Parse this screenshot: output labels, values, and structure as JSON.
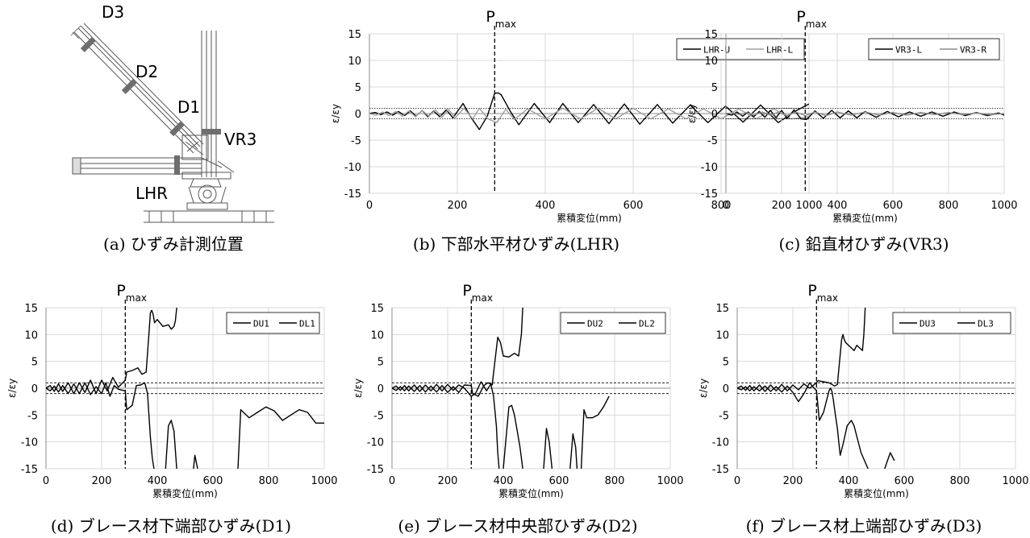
{
  "figure": {
    "diagram": {
      "caption": "(a) ひずみ計測位置",
      "labels": {
        "d3": "D3",
        "d2": "D2",
        "d1": "D1",
        "vr3": "VR3",
        "lhr": "LHR"
      }
    }
  },
  "chart_data": [
    {
      "id": "b",
      "type": "line",
      "caption": "(b) 下部水平材ひずみ(LHR)",
      "xlabel": "累積変位(mm)",
      "ylabel": "ε/εy",
      "xlim": [
        0,
        1000
      ],
      "ylim": [
        -15,
        15
      ],
      "xticks": [
        0,
        200,
        400,
        600,
        800,
        1000
      ],
      "yticks": [
        15,
        10,
        5,
        0,
        -5,
        -10,
        -15
      ],
      "pmax_x": 285,
      "pmax_label": "P",
      "pmax_sub": "max",
      "ref_lines": [
        1,
        -1
      ],
      "legend_position": "top-right",
      "grid": true,
      "series": [
        {
          "name": "LHR-U",
          "color": "#000000",
          "x": [
            0,
            13,
            26,
            40,
            53,
            66,
            80,
            93,
            106,
            120,
            133,
            146,
            160,
            175,
            190,
            213,
            230,
            250,
            268,
            285,
            293,
            300,
            320,
            340,
            375,
            410,
            440,
            475,
            510,
            545,
            580,
            615,
            655,
            690,
            730,
            770,
            810,
            850,
            890,
            930,
            970,
            1000
          ],
          "y": [
            0,
            0.2,
            -0.2,
            0.3,
            -0.3,
            0.4,
            -0.4,
            0.5,
            -0.5,
            0.6,
            -0.6,
            0.5,
            -0.6,
            0.7,
            -0.8,
            1.9,
            -0.6,
            -3.0,
            -0.5,
            3.8,
            3.9,
            3.5,
            0.5,
            -2.1,
            1.9,
            -1.7,
            1.9,
            -1.7,
            1.7,
            -1.9,
            1.8,
            -2.0,
            1.7,
            -1.8,
            1.6,
            -1.7,
            1.4,
            -1.6,
            1.6,
            -1.7,
            0.5,
            1.8
          ]
        },
        {
          "name": "LHR-L",
          "color": "#a0a0a0",
          "x": [
            0,
            15,
            30,
            45,
            60,
            75,
            90,
            105,
            120,
            135,
            150,
            165,
            180,
            195,
            215,
            235,
            250,
            270,
            290,
            310,
            330,
            360,
            400,
            440,
            480,
            520,
            560,
            600,
            640,
            680,
            720,
            760,
            800,
            840,
            880,
            920,
            960,
            1000
          ],
          "y": [
            0,
            -0.3,
            0.3,
            -0.4,
            0.4,
            -0.5,
            0.5,
            -0.6,
            0.6,
            -0.5,
            0.7,
            -0.7,
            0.8,
            -0.8,
            1.0,
            -1.0,
            1.0,
            -1.0,
            -1.7,
            0.8,
            -1.1,
            0.9,
            -1.0,
            1.0,
            -1.0,
            1.0,
            -1.0,
            1.0,
            -1.0,
            0.9,
            -1.0,
            0.9,
            -1.0,
            0.9,
            -1.0,
            0.9,
            -1.0,
            -0.6
          ]
        }
      ]
    },
    {
      "id": "c",
      "type": "line",
      "caption": "(c) 鉛直材ひずみ(VR3)",
      "xlabel": "累積変位(mm)",
      "ylabel": "ε/εy",
      "xlim": [
        0,
        1000
      ],
      "ylim": [
        -15,
        15
      ],
      "xticks": [
        0,
        200,
        400,
        600,
        800,
        1000
      ],
      "yticks": [
        15,
        10,
        5,
        0,
        -5,
        -10,
        -15
      ],
      "pmax_x": 285,
      "pmax_label": "P",
      "pmax_sub": "max",
      "ref_lines": [
        1,
        -1
      ],
      "legend_position": "top-right",
      "grid": true,
      "series": [
        {
          "name": "VR3-L",
          "color": "#000000",
          "x": [
            0,
            20,
            40,
            60,
            80,
            100,
            120,
            140,
            160,
            180,
            200,
            220,
            245,
            270,
            290,
            320,
            350,
            380,
            410,
            440,
            470,
            500,
            540,
            580,
            620,
            660,
            700,
            740,
            780,
            820,
            860,
            900,
            940,
            980,
            1000
          ],
          "y": [
            0,
            -0.3,
            0.3,
            -0.5,
            0.3,
            -0.6,
            0.4,
            -0.7,
            0.6,
            -0.8,
            0.6,
            -0.9,
            0.7,
            -1.0,
            -1.1,
            0.5,
            -0.9,
            0.6,
            -0.8,
            0.5,
            -0.8,
            0.4,
            -0.7,
            0.4,
            -0.6,
            0.3,
            -0.5,
            0.3,
            -0.5,
            0.3,
            -0.4,
            0.2,
            -0.4,
            0.1,
            -0.3
          ]
        },
        {
          "name": "VR3-R",
          "color": "#8c8c8c",
          "x": [
            0,
            25,
            50,
            75,
            100,
            130,
            160,
            190,
            220,
            250,
            285,
            320,
            360,
            400,
            450,
            500,
            550,
            600,
            650,
            700,
            750,
            800,
            850,
            900,
            950,
            1000
          ],
          "y": [
            0,
            0.1,
            -0.2,
            0.2,
            -0.3,
            0.3,
            -0.3,
            0.3,
            -0.4,
            0.3,
            -0.4,
            0.3,
            -0.4,
            0.3,
            -0.3,
            0.3,
            -0.3,
            0.2,
            -0.3,
            0.2,
            -0.2,
            0.2,
            -0.2,
            0.1,
            -0.2,
            0.0
          ]
        }
      ]
    },
    {
      "id": "d",
      "type": "line",
      "caption": "(d) ブレース材下端部ひずみ(D1)",
      "xlabel": "累積変位(mm)",
      "ylabel": "ε/εy",
      "xlim": [
        0,
        1000
      ],
      "ylim": [
        -15,
        15
      ],
      "xticks": [
        0,
        200,
        400,
        600,
        800,
        1000
      ],
      "yticks": [
        15,
        10,
        5,
        0,
        -5,
        -10,
        -15
      ],
      "pmax_x": 285,
      "pmax_label": "P",
      "pmax_sub": "max",
      "ref_lines": [
        1,
        -1
      ],
      "legend_position": "top-right",
      "grid": true,
      "series": [
        {
          "name": "DU1",
          "color": "#000000",
          "x": [
            0,
            15,
            30,
            45,
            60,
            80,
            100,
            120,
            140,
            160,
            180,
            200,
            220,
            240,
            260,
            285,
            290,
            310,
            330,
            345,
            360,
            370,
            375,
            380,
            385,
            390,
            400,
            420,
            440,
            450,
            460,
            465,
            470
          ],
          "y": [
            0,
            0.5,
            -0.6,
            0.8,
            -0.6,
            1.0,
            -1.0,
            1.0,
            -0.8,
            1.5,
            -1.0,
            1.5,
            -0.5,
            2.0,
            0.2,
            1.5,
            3.0,
            3.3,
            3.8,
            2.6,
            3.0,
            10.0,
            14.0,
            14.5,
            13.8,
            12.2,
            12.8,
            11.5,
            11.8,
            11.0,
            11.5,
            12.5,
            15.0
          ]
        },
        {
          "name": "DL1",
          "color": "#000000",
          "x": [
            0,
            15,
            30,
            45,
            60,
            80,
            100,
            120,
            140,
            160,
            180,
            200,
            215,
            230,
            245,
            260,
            285,
            290,
            310,
            325,
            340,
            355,
            365,
            375,
            382,
            388,
            null,
            430,
            440,
            450,
            460,
            470,
            null,
            530,
            535,
            545,
            null,
            690,
            700,
            730,
            760,
            790,
            820,
            850,
            880,
            910,
            940,
            970,
            1000
          ],
          "y": [
            0,
            -0.5,
            0.4,
            -0.7,
            0.5,
            -1.0,
            0.8,
            -1.0,
            1.0,
            -1.2,
            0.3,
            -1.0,
            1.0,
            -1.5,
            0.5,
            -0.2,
            -0.5,
            -4.0,
            -3.2,
            0.5,
            0.6,
            1.0,
            -1.0,
            -9.0,
            -13.0,
            -15.0,
            null,
            -15.0,
            -7.0,
            -6.0,
            -8.0,
            -15.0,
            null,
            -15.0,
            -12.5,
            -15.0,
            null,
            -15.0,
            -4.0,
            -5.5,
            -4.5,
            -3.5,
            -4.2,
            -6.0,
            -5.0,
            -4.0,
            -4.5,
            -6.5,
            -6.5
          ]
        }
      ]
    },
    {
      "id": "e",
      "type": "line",
      "caption": "(e) ブレース材中央部ひずみ(D2)",
      "xlabel": "累積変位(mm)",
      "ylabel": "ε/εy",
      "xlim": [
        0,
        1000
      ],
      "ylim": [
        -15,
        15
      ],
      "xticks": [
        0,
        200,
        400,
        600,
        800,
        1000
      ],
      "yticks": [
        15,
        10,
        5,
        0,
        -5,
        -10,
        -15
      ],
      "pmax_x": 285,
      "pmax_label": "P",
      "pmax_sub": "max",
      "ref_lines": [
        1,
        -1
      ],
      "legend_position": "top-right",
      "grid": true,
      "series": [
        {
          "name": "DU2",
          "color": "#000000",
          "x": [
            0,
            15,
            30,
            45,
            60,
            80,
            100,
            120,
            140,
            160,
            180,
            200,
            220,
            240,
            260,
            285,
            300,
            320,
            340,
            355,
            360,
            380,
            390,
            400,
            420,
            440,
            455,
            465,
            470
          ],
          "y": [
            0,
            0.4,
            -0.4,
            0.5,
            -0.5,
            0.6,
            -0.6,
            0.6,
            -0.5,
            0.7,
            -0.5,
            0.7,
            -0.4,
            0.6,
            0.0,
            -1.5,
            -1.0,
            1.2,
            -0.5,
            0.8,
            0.6,
            9.5,
            8.5,
            6.0,
            5.8,
            6.5,
            6.0,
            10.0,
            15.0
          ]
        },
        {
          "name": "DL2",
          "color": "#000000",
          "x": [
            0,
            15,
            30,
            45,
            60,
            80,
            100,
            120,
            140,
            160,
            180,
            200,
            220,
            240,
            260,
            285,
            290,
            310,
            330,
            345,
            355,
            365,
            375,
            380,
            385,
            null,
            400,
            420,
            430,
            440,
            450,
            460,
            470,
            null,
            545,
            555,
            565,
            575,
            null,
            640,
            650,
            660,
            665,
            null,
            680,
            690,
            700,
            720,
            740,
            760,
            780
          ],
          "y": [
            0,
            -0.4,
            0.3,
            -0.5,
            0.4,
            -0.6,
            0.5,
            -0.7,
            0.4,
            -0.7,
            0.5,
            -0.8,
            0.3,
            -0.8,
            0.6,
            0.5,
            -1.0,
            -1.5,
            0.5,
            1.0,
            0.8,
            -1.5,
            -7.0,
            -12.0,
            -15.0,
            null,
            -15.0,
            -3.5,
            -3.2,
            -5.0,
            -8.0,
            -11.0,
            -15.0,
            null,
            -15.0,
            -7.5,
            -10.0,
            -15.0,
            null,
            -15.0,
            -8.5,
            -11.0,
            -15.0,
            null,
            -15.0,
            -4.0,
            -5.5,
            -5.5,
            -5.0,
            -3.5,
            -1.5
          ]
        }
      ]
    },
    {
      "id": "f",
      "type": "line",
      "caption": "(f) ブレース材上端部ひずみ(D3)",
      "xlabel": "累積変位(mm)",
      "ylabel": "ε/εy",
      "xlim": [
        0,
        1000
      ],
      "ylim": [
        -15,
        15
      ],
      "xticks": [
        0,
        200,
        400,
        600,
        800,
        1000
      ],
      "yticks": [
        15,
        10,
        5,
        0,
        -5,
        -10,
        -15
      ],
      "pmax_x": 285,
      "pmax_label": "P",
      "pmax_sub": "max",
      "ref_lines": [
        1,
        -1
      ],
      "legend_position": "top-right",
      "grid": true,
      "series": [
        {
          "name": "DU3",
          "color": "#000000",
          "x": [
            0,
            15,
            30,
            45,
            60,
            80,
            100,
            120,
            140,
            160,
            180,
            200,
            220,
            240,
            260,
            285,
            290,
            310,
            330,
            350,
            360,
            375,
            380,
            385,
            390,
            400,
            420,
            430,
            440,
            450,
            455,
            460
          ],
          "y": [
            0,
            0.4,
            -0.4,
            0.5,
            -0.5,
            0.6,
            -0.6,
            0.6,
            -0.5,
            0.7,
            -0.5,
            0.6,
            -0.3,
            0.8,
            0.0,
            1.0,
            1.4,
            1.2,
            1.0,
            0.4,
            0.7,
            9.0,
            10.0,
            9.0,
            8.5,
            8.0,
            7.0,
            8.0,
            7.5,
            7.0,
            10.0,
            15.0
          ]
        },
        {
          "name": "DL3",
          "color": "#000000",
          "x": [
            0,
            15,
            30,
            45,
            60,
            80,
            100,
            120,
            140,
            160,
            180,
            200,
            220,
            240,
            260,
            285,
            295,
            310,
            320,
            330,
            335,
            340,
            345,
            350,
            360,
            365,
            370,
            380,
            395,
            410,
            420,
            430,
            445,
            470,
            null,
            530,
            550,
            565
          ],
          "y": [
            0,
            -0.3,
            0.3,
            -0.5,
            0.3,
            -0.5,
            0.4,
            -0.6,
            0.3,
            -0.7,
            0.4,
            -0.8,
            -2.5,
            -1.0,
            1.0,
            -0.5,
            -6.0,
            -4.5,
            -2.5,
            -0.5,
            0.0,
            -0.5,
            -2.0,
            -4.0,
            -7.5,
            -10.0,
            -12.5,
            -10.5,
            -7.0,
            -6.0,
            -7.0,
            -9.0,
            -12.0,
            -15.0,
            null,
            -15.0,
            -12.0,
            -13.5
          ]
        }
      ]
    }
  ]
}
